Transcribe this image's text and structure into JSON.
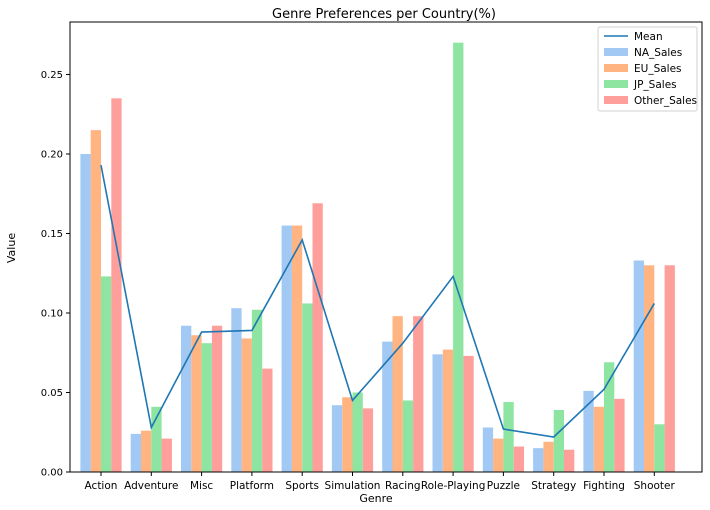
{
  "chart_data": {
    "type": "bar",
    "title": "Genre Preferences per Country(%)",
    "xlabel": "Genre",
    "ylabel": "Value",
    "ylim": [
      0,
      0.283
    ],
    "yticks": [
      "0.00",
      "0.05",
      "0.10",
      "0.15",
      "0.20",
      "0.25"
    ],
    "categories": [
      "Action",
      "Adventure",
      "Misc",
      "Platform",
      "Sports",
      "Simulation",
      "Racing",
      "Role-Playing",
      "Puzzle",
      "Strategy",
      "Fighting",
      "Shooter"
    ],
    "series": [
      {
        "name": "NA_Sales",
        "color": "#a1c9f4",
        "values": [
          0.2,
          0.024,
          0.092,
          0.103,
          0.155,
          0.042,
          0.082,
          0.074,
          0.028,
          0.015,
          0.051,
          0.133
        ]
      },
      {
        "name": "EU_Sales",
        "color": "#ffb482",
        "values": [
          0.215,
          0.026,
          0.086,
          0.084,
          0.155,
          0.047,
          0.098,
          0.077,
          0.021,
          0.019,
          0.041,
          0.13
        ]
      },
      {
        "name": "JP_Sales",
        "color": "#8de5a1",
        "values": [
          0.123,
          0.041,
          0.081,
          0.102,
          0.106,
          0.05,
          0.045,
          0.27,
          0.044,
          0.039,
          0.069,
          0.03
        ]
      },
      {
        "name": "Other_Sales",
        "color": "#ff9f9b",
        "values": [
          0.235,
          0.021,
          0.092,
          0.065,
          0.169,
          0.04,
          0.098,
          0.073,
          0.016,
          0.014,
          0.046,
          0.13
        ]
      }
    ],
    "line": {
      "name": "Mean",
      "color": "#1f77b4",
      "values": [
        0.193,
        0.028,
        0.088,
        0.089,
        0.146,
        0.045,
        0.081,
        0.123,
        0.027,
        0.022,
        0.052,
        0.106
      ]
    },
    "legend": "top-right",
    "grid": false
  }
}
